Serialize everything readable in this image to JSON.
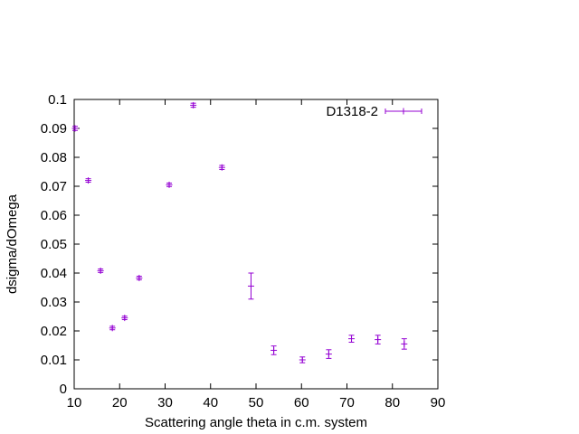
{
  "chart_data": {
    "type": "scatter",
    "xlabel": "Scattering angle theta in c.m. system",
    "ylabel": "dsigma/dOmega",
    "xlim": [
      10,
      90
    ],
    "ylim": [
      0,
      0.1
    ],
    "x_ticks": [
      "10",
      "20",
      "30",
      "40",
      "50",
      "60",
      "70",
      "80",
      "90"
    ],
    "y_ticks": [
      "0",
      "0.01",
      "0.02",
      "0.03",
      "0.04",
      "0.05",
      "0.06",
      "0.07",
      "0.08",
      "0.09",
      "0.1"
    ],
    "grid": false,
    "legend_position": "top-right",
    "series": [
      {
        "name": "D1318-2",
        "color": "#9400d3",
        "style": "points with y errorbars",
        "points": [
          {
            "x": 10.2,
            "y": 0.09,
            "err": 0.0007
          },
          {
            "x": 13.1,
            "y": 0.072,
            "err": 0.0006
          },
          {
            "x": 15.8,
            "y": 0.0408,
            "err": 0.0006
          },
          {
            "x": 18.4,
            "y": 0.021,
            "err": 0.0006
          },
          {
            "x": 21.1,
            "y": 0.0245,
            "err": 0.0006
          },
          {
            "x": 24.3,
            "y": 0.0383,
            "err": 0.0006
          },
          {
            "x": 30.9,
            "y": 0.0705,
            "err": 0.0006
          },
          {
            "x": 36.2,
            "y": 0.098,
            "err": 0.0007
          },
          {
            "x": 42.5,
            "y": 0.0765,
            "err": 0.0007
          },
          {
            "x": 48.9,
            "y": 0.0355,
            "err": 0.0045
          },
          {
            "x": 53.9,
            "y": 0.0133,
            "err": 0.0015
          },
          {
            "x": 60.2,
            "y": 0.01,
            "err": 0.001
          },
          {
            "x": 66.0,
            "y": 0.012,
            "err": 0.0015
          },
          {
            "x": 71.0,
            "y": 0.0173,
            "err": 0.0012
          },
          {
            "x": 76.8,
            "y": 0.017,
            "err": 0.0015
          },
          {
            "x": 82.6,
            "y": 0.0155,
            "err": 0.0018
          }
        ]
      }
    ]
  }
}
